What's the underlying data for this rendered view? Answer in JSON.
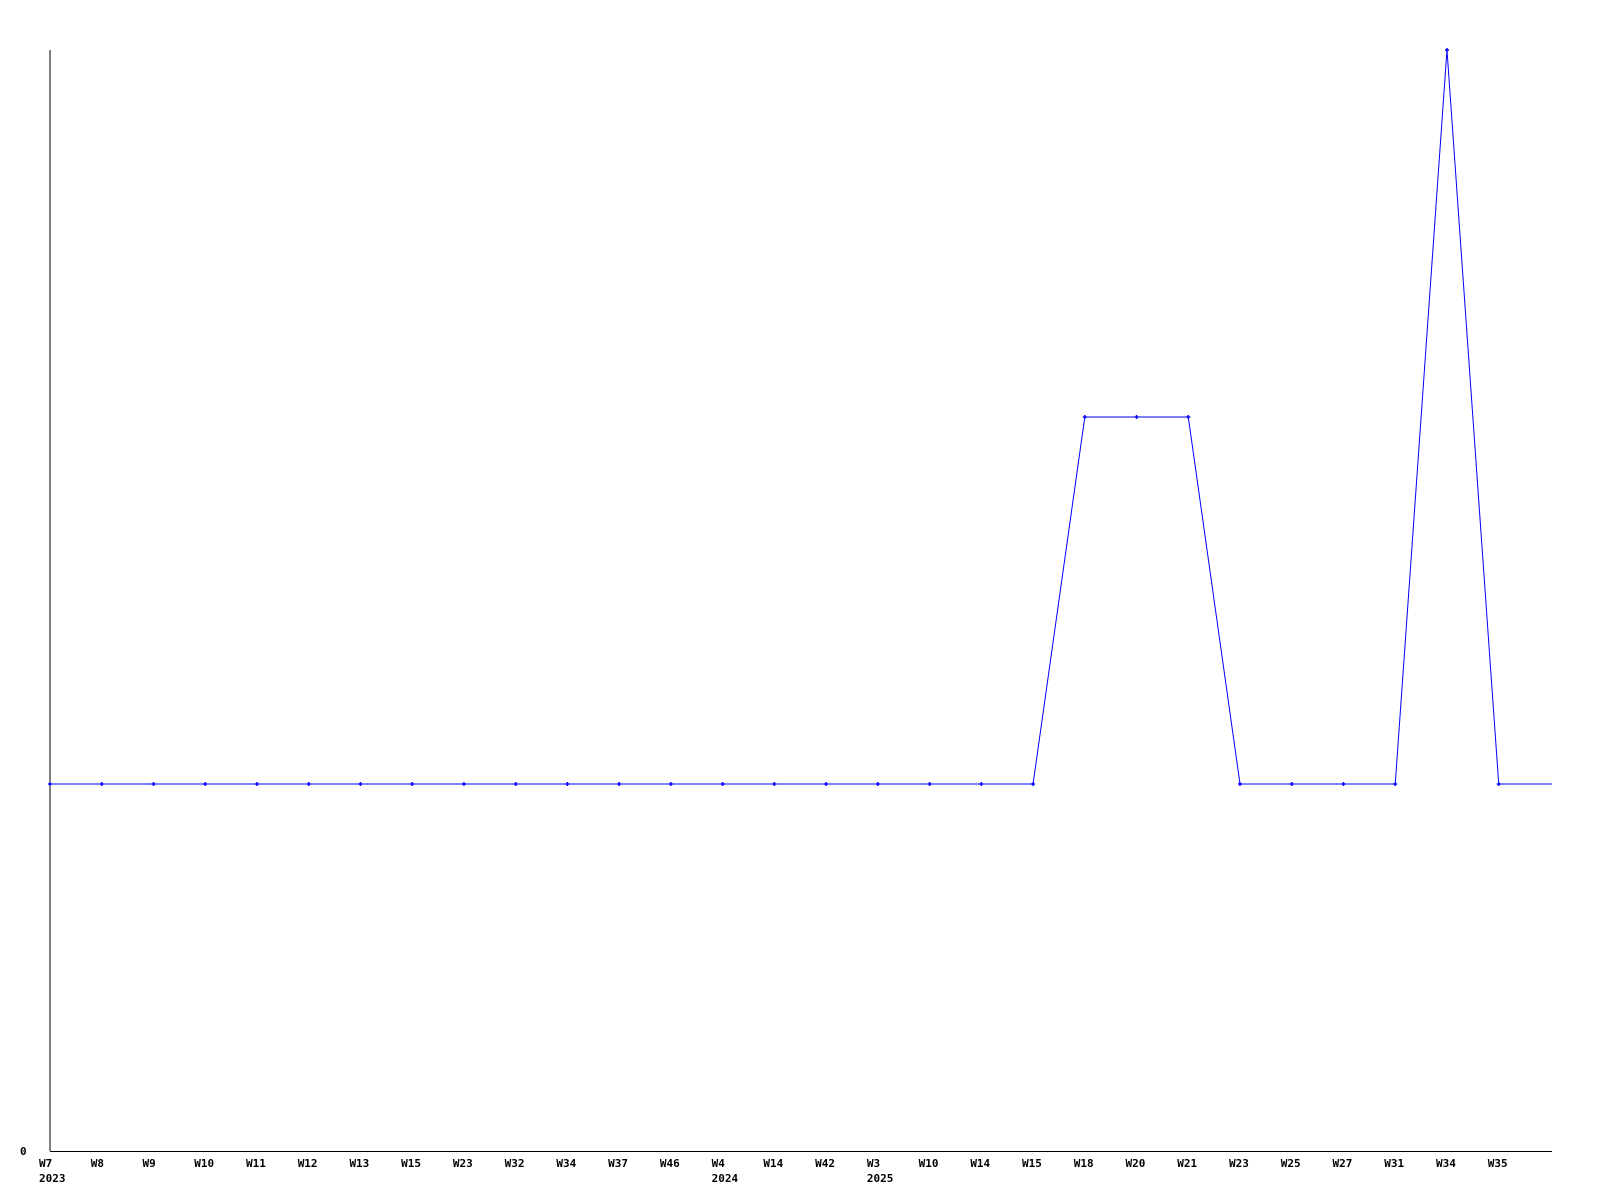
{
  "chart_data": {
    "type": "line",
    "title": "",
    "xlabel": "",
    "ylabel": "",
    "categories": [
      "W7",
      "W8",
      "W9",
      "W10",
      "W11",
      "W12",
      "W13",
      "W15",
      "W23",
      "W32",
      "W34",
      "W37",
      "W46",
      "W4",
      "W14",
      "W42",
      "W3",
      "W10",
      "W14",
      "W15",
      "W18",
      "W20",
      "W21",
      "W23",
      "W25",
      "W27",
      "W31",
      "W34",
      "W35"
    ],
    "year_labels": [
      {
        "index": 0,
        "label": "2023"
      },
      {
        "index": 13,
        "label": "2024"
      },
      {
        "index": 16,
        "label": "2025"
      }
    ],
    "series": [
      {
        "values": [
          1,
          1,
          1,
          1,
          1,
          1,
          1,
          1,
          1,
          1,
          1,
          1,
          1,
          1,
          1,
          1,
          1,
          1,
          1,
          1,
          2,
          2,
          2,
          1,
          1,
          1,
          1,
          3,
          1
        ],
        "color": "#0000ff"
      }
    ],
    "y_tick_labels": [
      "0"
    ],
    "ylim": [
      0,
      3
    ],
    "grid": false,
    "legend": "none"
  }
}
